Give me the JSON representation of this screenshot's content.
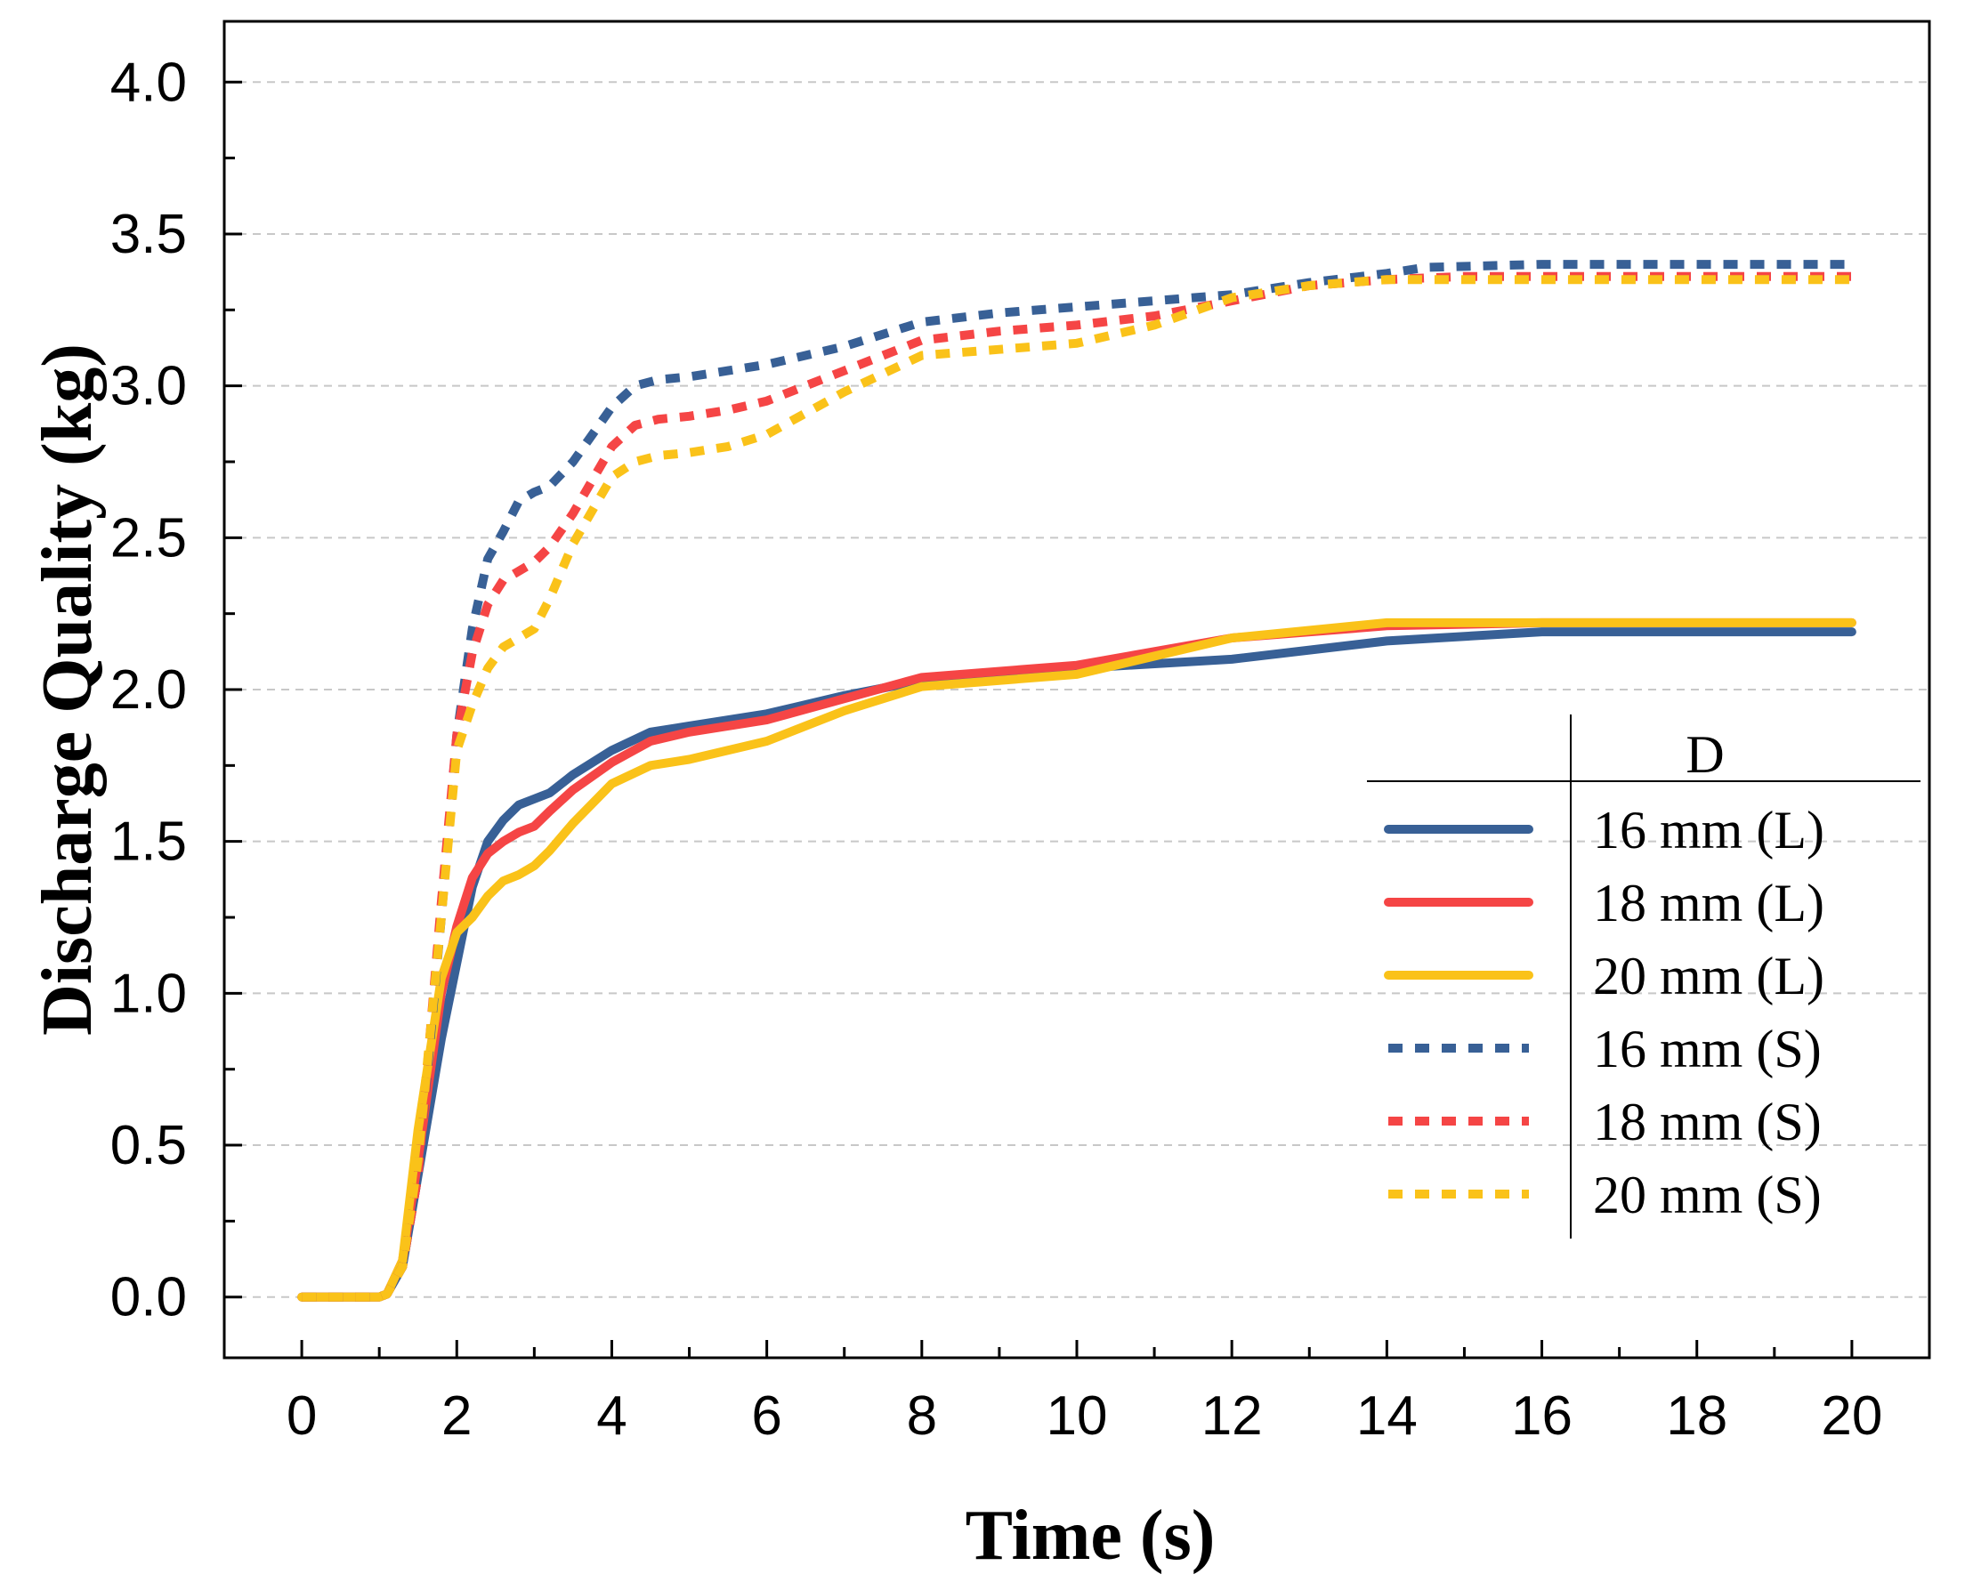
{
  "chart_data": {
    "type": "line",
    "title": "",
    "xlabel": "Time (s)",
    "ylabel": "Discharge Quality (kg)",
    "xlim": [
      -1,
      21
    ],
    "ylim": [
      -0.2,
      4.2
    ],
    "xticks": [
      "0",
      "2",
      "4",
      "6",
      "8",
      "10",
      "12",
      "14",
      "16",
      "18",
      "20"
    ],
    "yticks": [
      "0.0",
      "0.5",
      "1.0",
      "1.5",
      "2.0",
      "2.5",
      "3.0",
      "3.5",
      "4.0"
    ],
    "grid": "horizontal dashed",
    "legend": {
      "position": "bottom-right",
      "header": "D"
    },
    "series": [
      {
        "name": "16 mm (L)",
        "color": "#386096",
        "style": "solid",
        "x": [
          0,
          1,
          1.1,
          1.3,
          1.5,
          1.8,
          2.0,
          2.2,
          2.4,
          2.6,
          2.8,
          3.0,
          3.2,
          3.5,
          4.0,
          4.5,
          5.0,
          6.0,
          7.0,
          8.0,
          10.0,
          12.0,
          14.0,
          16.0,
          18.0,
          20.0
        ],
        "y": [
          0,
          0,
          0.01,
          0.1,
          0.4,
          0.85,
          1.1,
          1.35,
          1.5,
          1.57,
          1.62,
          1.64,
          1.66,
          1.72,
          1.8,
          1.86,
          1.88,
          1.92,
          1.98,
          2.03,
          2.07,
          2.1,
          2.16,
          2.19,
          2.19,
          2.19
        ]
      },
      {
        "name": "18 mm (L)",
        "color": "#f54545",
        "style": "solid",
        "x": [
          0,
          1,
          1.1,
          1.3,
          1.5,
          1.8,
          2.0,
          2.2,
          2.4,
          2.6,
          2.8,
          3.0,
          3.2,
          3.5,
          4.0,
          4.5,
          5.0,
          6.0,
          7.0,
          8.0,
          10.0,
          12.0,
          14.0,
          16.0,
          18.0,
          20.0
        ],
        "y": [
          0,
          0,
          0.01,
          0.12,
          0.45,
          1.0,
          1.22,
          1.38,
          1.46,
          1.5,
          1.53,
          1.55,
          1.6,
          1.67,
          1.76,
          1.83,
          1.86,
          1.9,
          1.97,
          2.04,
          2.08,
          2.17,
          2.21,
          2.22,
          2.22,
          2.22
        ]
      },
      {
        "name": "20 mm (L)",
        "color": "#fac219",
        "style": "solid",
        "x": [
          0,
          1,
          1.1,
          1.3,
          1.5,
          1.8,
          2.0,
          2.2,
          2.4,
          2.6,
          2.8,
          3.0,
          3.2,
          3.5,
          4.0,
          4.5,
          5.0,
          6.0,
          7.0,
          8.0,
          10.0,
          12.0,
          14.0,
          16.0,
          18.0,
          20.0
        ],
        "y": [
          0,
          0,
          0.01,
          0.12,
          0.55,
          1.05,
          1.2,
          1.25,
          1.32,
          1.37,
          1.39,
          1.42,
          1.47,
          1.56,
          1.69,
          1.75,
          1.77,
          1.83,
          1.93,
          2.01,
          2.05,
          2.17,
          2.22,
          2.22,
          2.22,
          2.22
        ]
      },
      {
        "name": "16 mm (S)",
        "color": "#386096",
        "style": "dashed",
        "x": [
          0,
          1,
          1.1,
          1.3,
          1.5,
          1.8,
          2.0,
          2.2,
          2.4,
          2.6,
          2.8,
          3.0,
          3.2,
          3.5,
          4.0,
          4.3,
          4.6,
          5.0,
          5.5,
          6.0,
          7.0,
          8.0,
          9.0,
          10.0,
          11.0,
          12.0,
          13.0,
          14.0,
          14.5,
          16.0,
          18.0,
          20.0
        ],
        "y": [
          0,
          0,
          0.01,
          0.1,
          0.4,
          1.25,
          1.85,
          2.2,
          2.43,
          2.52,
          2.62,
          2.65,
          2.67,
          2.75,
          2.93,
          3.0,
          3.02,
          3.03,
          3.05,
          3.07,
          3.13,
          3.21,
          3.24,
          3.26,
          3.28,
          3.3,
          3.34,
          3.37,
          3.39,
          3.4,
          3.4,
          3.4
        ]
      },
      {
        "name": "18 mm (S)",
        "color": "#f54545",
        "style": "dashed",
        "x": [
          0,
          1,
          1.1,
          1.3,
          1.5,
          1.8,
          2.0,
          2.2,
          2.4,
          2.6,
          2.8,
          3.0,
          3.2,
          3.5,
          4.0,
          4.3,
          4.6,
          5.0,
          5.5,
          6.0,
          7.0,
          8.0,
          9.0,
          10.0,
          11.0,
          12.0,
          13.0,
          14.0,
          15.0,
          16.0,
          18.0,
          20.0
        ],
        "y": [
          0,
          0,
          0.01,
          0.1,
          0.4,
          1.3,
          1.85,
          2.12,
          2.28,
          2.36,
          2.39,
          2.42,
          2.47,
          2.58,
          2.8,
          2.87,
          2.89,
          2.9,
          2.92,
          2.95,
          3.05,
          3.15,
          3.18,
          3.2,
          3.23,
          3.28,
          3.33,
          3.35,
          3.36,
          3.36,
          3.36,
          3.36
        ]
      },
      {
        "name": "20 mm (S)",
        "color": "#fac219",
        "style": "dashed",
        "x": [
          0,
          1,
          1.1,
          1.3,
          1.5,
          1.8,
          2.0,
          2.2,
          2.4,
          2.6,
          2.8,
          3.0,
          3.2,
          3.5,
          4.0,
          4.3,
          4.6,
          5.0,
          5.5,
          6.0,
          7.0,
          8.0,
          9.0,
          10.0,
          11.0,
          12.0,
          13.0,
          14.0,
          15.0,
          16.0,
          18.0,
          20.0
        ],
        "y": [
          0,
          0,
          0.01,
          0.1,
          0.45,
          1.25,
          1.8,
          1.95,
          2.07,
          2.14,
          2.17,
          2.2,
          2.3,
          2.48,
          2.7,
          2.75,
          2.77,
          2.78,
          2.8,
          2.84,
          2.98,
          3.1,
          3.12,
          3.14,
          3.2,
          3.29,
          3.33,
          3.35,
          3.35,
          3.35,
          3.35,
          3.35
        ]
      }
    ]
  }
}
